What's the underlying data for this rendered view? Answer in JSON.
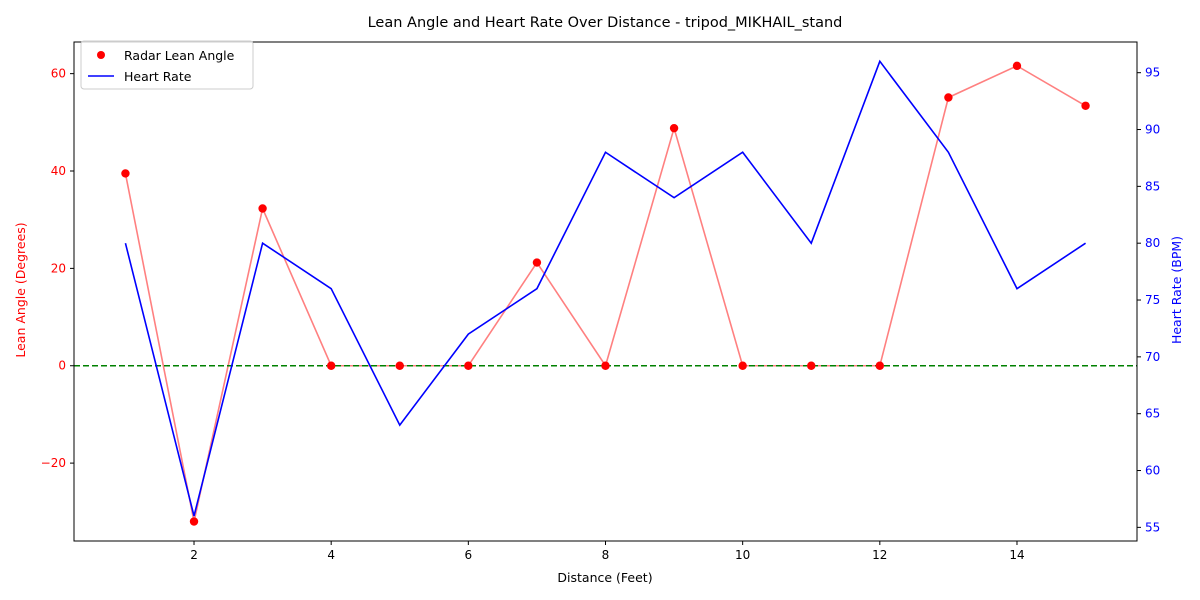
{
  "chart_data": {
    "type": "line",
    "title": "Lean Angle and Heart Rate Over Distance - tripod_MIKHAIL_stand",
    "xlabel": "Distance (Feet)",
    "ylabel_left": "Lean Angle (Degrees)",
    "ylabel_right": "Heart Rate (BPM)",
    "xlim": [
      0.25,
      15.75
    ],
    "ylim_left": [
      -36,
      66.5
    ],
    "ylim_right": [
      53.8,
      97.7
    ],
    "x_ticks": [
      2,
      4,
      6,
      8,
      10,
      12,
      14
    ],
    "y_left_ticks": [
      -20,
      0,
      20,
      40,
      60
    ],
    "y_right_ticks": [
      55,
      60,
      65,
      70,
      75,
      80,
      85,
      90,
      95
    ],
    "grid": false,
    "legend_position": "top-left",
    "x": [
      1,
      2,
      3,
      4,
      5,
      6,
      7,
      8,
      9,
      10,
      11,
      12,
      13,
      14,
      15
    ],
    "reference_line": {
      "axis": "left",
      "value": 0,
      "color": "#008000",
      "style": "dashed"
    },
    "series": [
      {
        "name": "Radar Lean Angle",
        "axis": "left",
        "marker_color": "#ff0000",
        "line_color": "#ff8080",
        "values": [
          39.5,
          -32,
          32.3,
          0,
          0,
          0,
          21.2,
          0,
          48.8,
          0,
          0,
          0,
          55.1,
          61.6,
          53.4
        ]
      },
      {
        "name": "Heart Rate",
        "axis": "right",
        "line_color": "#0000ff",
        "values": [
          80,
          56,
          80,
          76,
          64,
          72,
          76,
          88,
          84,
          88,
          80,
          96,
          88,
          76,
          80
        ]
      }
    ]
  }
}
